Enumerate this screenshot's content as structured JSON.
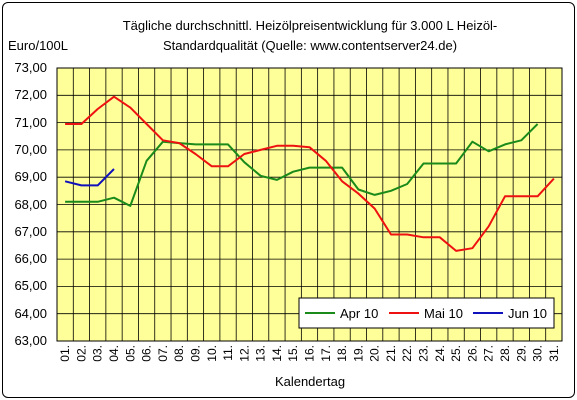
{
  "chart_data": {
    "type": "line",
    "title_line1": "Tägliche durchschnittl. Heizölpreisentwicklung für 3.000 L Heizöl-",
    "title_line2": "Standardqualität (Quelle: www.contentserver24.de)",
    "ylabel": "Euro/100L",
    "xlabel": "Kalendertag",
    "ylim": [
      63,
      73
    ],
    "yticks": [
      "63,00",
      "64,00",
      "65,00",
      "66,00",
      "67,00",
      "68,00",
      "69,00",
      "70,00",
      "71,00",
      "72,00",
      "73,00"
    ],
    "categories": [
      "01.",
      "02.",
      "03.",
      "04.",
      "05.",
      "06.",
      "07.",
      "08.",
      "09.",
      "10.",
      "11.",
      "12.",
      "13.",
      "14.",
      "15.",
      "16.",
      "17.",
      "18.",
      "19.",
      "20.",
      "21.",
      "22.",
      "23.",
      "24.",
      "25.",
      "26.",
      "27.",
      "28.",
      "29.",
      "30.",
      "31."
    ],
    "grid": true,
    "legend_position": "bottom-right",
    "series": [
      {
        "name": "Apr 10",
        "color": "#1a8a1a",
        "values": [
          68.1,
          68.1,
          68.1,
          68.25,
          67.95,
          69.6,
          70.3,
          70.25,
          70.2,
          70.2,
          70.2,
          69.55,
          69.05,
          68.9,
          69.2,
          69.35,
          69.35,
          69.35,
          68.55,
          68.35,
          68.5,
          68.75,
          69.5,
          69.5,
          69.5,
          70.3,
          69.95,
          70.2,
          70.35,
          70.95,
          null
        ]
      },
      {
        "name": "Mai 10",
        "color": "#ee1111",
        "values": [
          70.95,
          70.95,
          71.5,
          71.95,
          71.55,
          70.95,
          70.35,
          70.25,
          69.85,
          69.4,
          69.4,
          69.85,
          70.0,
          70.15,
          70.15,
          70.1,
          69.6,
          68.85,
          68.4,
          67.85,
          66.9,
          66.9,
          66.8,
          66.8,
          66.3,
          66.4,
          67.2,
          68.3,
          68.3,
          68.3,
          68.95
        ]
      },
      {
        "name": "Jun 10",
        "color": "#1111bb",
        "values": [
          68.85,
          68.7,
          68.7,
          69.3,
          null,
          null,
          null,
          null,
          null,
          null,
          null,
          null,
          null,
          null,
          null,
          null,
          null,
          null,
          null,
          null,
          null,
          null,
          null,
          null,
          null,
          null,
          null,
          null,
          null,
          null,
          null
        ]
      }
    ]
  },
  "colors": {
    "plot_background": "#ffff99",
    "grid": "#000000"
  }
}
